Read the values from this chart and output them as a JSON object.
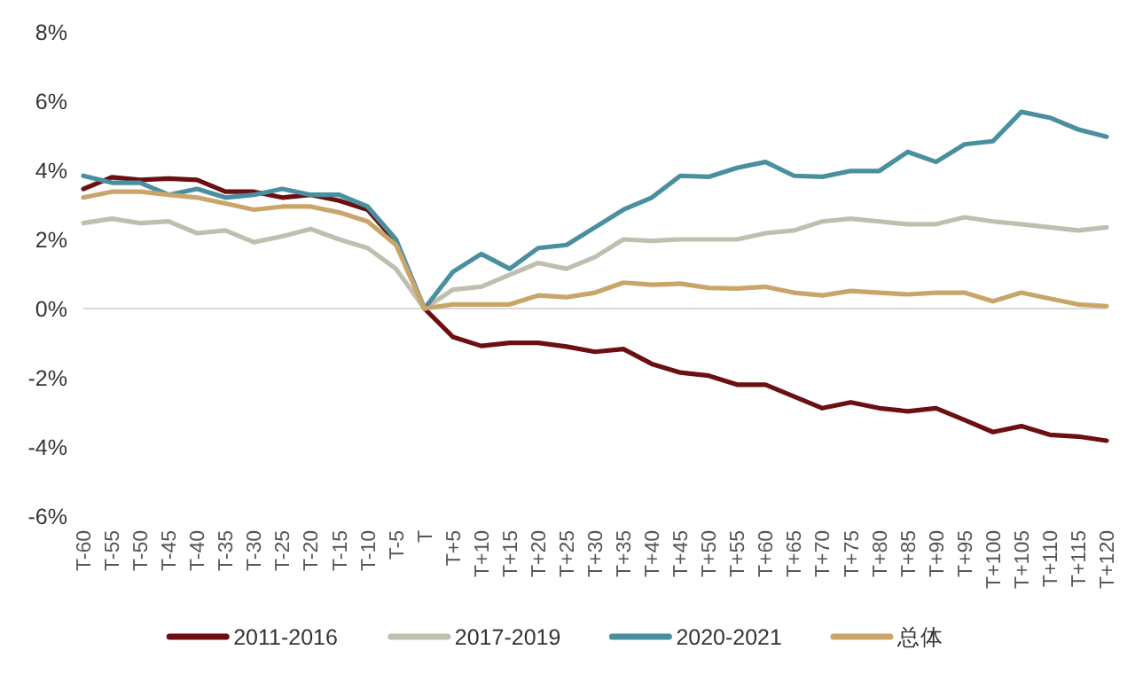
{
  "chart_data": {
    "type": "line",
    "categories": [
      "T-60",
      "T-55",
      "T-50",
      "T-45",
      "T-40",
      "T-35",
      "T-30",
      "T-25",
      "T-20",
      "T-15",
      "T-10",
      "T-5",
      "T",
      "T+5",
      "T+10",
      "T+15",
      "T+20",
      "T+25",
      "T+30",
      "T+35",
      "T+40",
      "T+45",
      "T+50",
      "T+55",
      "T+60",
      "T+65",
      "T+70",
      "T+75",
      "T+80",
      "T+85",
      "T+90",
      "T+95",
      "T+100",
      "T+105",
      "T+110",
      "T+115",
      "T+120"
    ],
    "ylim": [
      -6,
      8
    ],
    "yticks": [
      {
        "value": -6,
        "label": "-6%"
      },
      {
        "value": -4,
        "label": "-4%"
      },
      {
        "value": -2,
        "label": "-2%"
      },
      {
        "value": 0,
        "label": "0%"
      },
      {
        "value": 2,
        "label": "2%"
      },
      {
        "value": 4,
        "label": "4%"
      },
      {
        "value": 6,
        "label": "6%"
      },
      {
        "value": 8,
        "label": "8%"
      }
    ],
    "legend": "bottom",
    "series": [
      {
        "name": "2011-2016",
        "color": "#6b0f12",
        "values": [
          3.46,
          3.8,
          3.72,
          3.76,
          3.72,
          3.38,
          3.38,
          3.21,
          3.29,
          3.12,
          2.86,
          1.92,
          0,
          -0.82,
          -1.08,
          -0.99,
          -0.99,
          -1.1,
          -1.25,
          -1.17,
          -1.6,
          -1.85,
          -1.94,
          -2.2,
          -2.2,
          -2.54,
          -2.88,
          -2.71,
          -2.88,
          -2.97,
          -2.88,
          -3.22,
          -3.57,
          -3.4,
          -3.65,
          -3.7,
          -3.82
        ]
      },
      {
        "name": "2017-2019",
        "color": "#bfbfaf",
        "values": [
          2.47,
          2.6,
          2.47,
          2.52,
          2.18,
          2.26,
          1.92,
          2.09,
          2.3,
          2.0,
          1.75,
          1.15,
          0,
          0.55,
          0.63,
          0.98,
          1.32,
          1.15,
          1.49,
          2.0,
          1.96,
          2.0,
          2.0,
          2.0,
          2.18,
          2.26,
          2.52,
          2.6,
          2.52,
          2.44,
          2.44,
          2.64,
          2.52,
          2.44,
          2.35,
          2.26,
          2.35
        ]
      },
      {
        "name": "2020-2021",
        "color": "#4a8fa0",
        "values": [
          3.84,
          3.64,
          3.64,
          3.29,
          3.46,
          3.21,
          3.29,
          3.46,
          3.29,
          3.29,
          2.95,
          2.0,
          0,
          1.06,
          1.58,
          1.15,
          1.75,
          1.84,
          2.35,
          2.86,
          3.21,
          3.84,
          3.81,
          4.07,
          4.24,
          3.84,
          3.81,
          3.98,
          3.98,
          4.53,
          4.24,
          4.75,
          4.84,
          5.69,
          5.52,
          5.18,
          4.97
        ]
      },
      {
        "name": "总体",
        "color": "#c9a56a",
        "values": [
          3.21,
          3.38,
          3.38,
          3.29,
          3.21,
          3.04,
          2.86,
          2.95,
          2.95,
          2.78,
          2.52,
          1.84,
          0,
          0.12,
          0.12,
          0.12,
          0.38,
          0.33,
          0.46,
          0.75,
          0.69,
          0.72,
          0.6,
          0.58,
          0.63,
          0.46,
          0.38,
          0.51,
          0.46,
          0.41,
          0.46,
          0.46,
          0.21,
          0.46,
          0.29,
          0.12,
          0.07
        ]
      }
    ]
  }
}
